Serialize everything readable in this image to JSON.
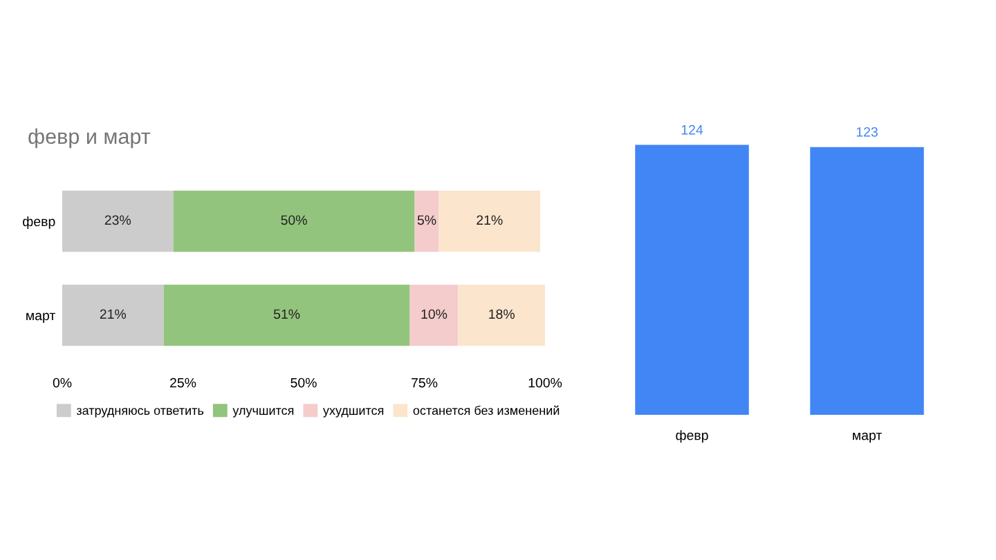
{
  "chart_data": [
    {
      "type": "bar",
      "title": "февр и март",
      "orientation": "horizontal",
      "stacked": true,
      "categories": [
        "февр",
        "март"
      ],
      "series": [
        {
          "name": "затрудняюсь ответить",
          "color": "#cccccc",
          "values": [
            23,
            21
          ],
          "value_labels": [
            "23%",
            "21%"
          ]
        },
        {
          "name": "улучшится",
          "color": "#93c47d",
          "values": [
            50,
            51
          ],
          "value_labels": [
            "50%",
            "51%"
          ]
        },
        {
          "name": "ухудшится",
          "color": "#f4cccc",
          "values": [
            5,
            10
          ],
          "value_labels": [
            "5%",
            "10%"
          ]
        },
        {
          "name": "останется без изменений",
          "color": "#fce5cd",
          "values": [
            21,
            18
          ],
          "value_labels": [
            "21%",
            "18%"
          ]
        }
      ],
      "xlim": [
        0,
        100
      ],
      "xticks": [
        {
          "value": 0,
          "label": "0%"
        },
        {
          "value": 25,
          "label": "25%"
        },
        {
          "value": 50,
          "label": "50%"
        },
        {
          "value": 75,
          "label": "75%"
        },
        {
          "value": 100,
          "label": "100%"
        }
      ],
      "legend": "bottom",
      "grid": false
    },
    {
      "type": "bar",
      "categories": [
        "февр",
        "март"
      ],
      "values": [
        124,
        123
      ],
      "color": "#4285f4",
      "data_labels": true,
      "tick_labels": "x",
      "grid": false
    }
  ]
}
